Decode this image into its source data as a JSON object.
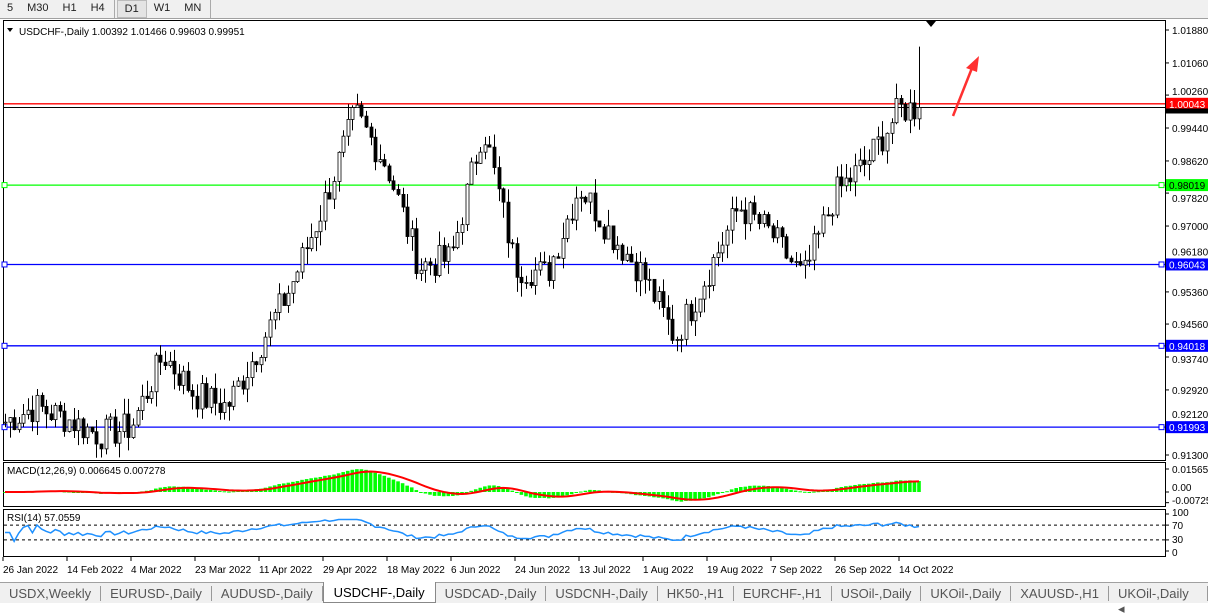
{
  "timeframes": [
    {
      "label": "5"
    },
    {
      "label": "M30"
    },
    {
      "label": "H1"
    },
    {
      "label": "H4"
    },
    {
      "label": "D1",
      "selected": true
    },
    {
      "label": "W1"
    },
    {
      "label": "MN"
    }
  ],
  "chart": {
    "symbol_label": "USDCHF-,Daily",
    "ohlc": "1.00392 1.01466 0.99603 0.99951",
    "macd_label": "MACD(12,26,9) 0.006645 0.007278",
    "rsi_label": "RSI(14) 57.0559",
    "price_ticks": [
      "1.01880",
      "1.01060",
      "1.00260",
      "0.99440",
      "0.98620",
      "0.97820",
      "0.97000",
      "0.96180",
      "0.95360",
      "0.94560",
      "0.93740",
      "0.92920",
      "0.92120",
      "0.91300"
    ],
    "macd_ticks": [
      "0.015654",
      "0.00",
      "-0.007259"
    ],
    "rsi_ticks": [
      "100",
      "70",
      "30",
      "0"
    ],
    "date_ticks": [
      "26 Jan 2022",
      "14 Feb 2022",
      "4 Mar 2022",
      "23 Mar 2022",
      "11 Apr 2022",
      "29 Apr 2022",
      "18 May 2022",
      "6 Jun 2022",
      "24 Jun 2022",
      "13 Jul 2022",
      "1 Aug 2022",
      "19 Aug 2022",
      "7 Sep 2022",
      "26 Sep 2022",
      "14 Oct 2022"
    ],
    "hlines": [
      {
        "price": 1.00043,
        "label": "1.00043",
        "color": "#ff0000"
      },
      {
        "price": 0.98019,
        "label": "0.98019",
        "color": "#00ff00"
      },
      {
        "price": 0.96043,
        "label": "0.96043",
        "color": "#0000ff"
      },
      {
        "price": 0.94018,
        "label": "0.94018",
        "color": "#0000ff"
      },
      {
        "price": 0.91993,
        "label": "0.91993",
        "color": "#0000ff"
      }
    ],
    "colors": {
      "bull": "#000000",
      "bear": "#000000",
      "macd_hist": "#00ff00",
      "macd_signal": "#ff0000",
      "rsi": "#1e90ff",
      "arrow": "#ff3030"
    }
  },
  "chart_data": {
    "type": "candlestick",
    "price_range": [
      0.913,
      1.0188
    ],
    "approx_closes": [
      [
        "26 Jan",
        0.921
      ],
      [
        "4 Feb",
        0.925
      ],
      [
        "14 Feb",
        0.922
      ],
      [
        "23 Feb",
        0.918
      ],
      [
        "4 Mar",
        0.92
      ],
      [
        "14 Mar",
        0.938
      ],
      [
        "23 Mar",
        0.928
      ],
      [
        "1 Apr",
        0.925
      ],
      [
        "11 Apr",
        0.94
      ],
      [
        "20 Apr",
        0.955
      ],
      [
        "29 Apr",
        0.975
      ],
      [
        "10 May",
        0.998
      ],
      [
        "18 May",
        0.985
      ],
      [
        "27 May",
        0.96
      ],
      [
        "6 Jun",
        0.962
      ],
      [
        "15 Jun",
        0.995
      ],
      [
        "24 Jun",
        0.96
      ],
      [
        "4 Jul",
        0.958
      ],
      [
        "13 Jul",
        0.98
      ],
      [
        "22 Jul",
        0.968
      ],
      [
        "1 Aug",
        0.958
      ],
      [
        "10 Aug",
        0.942
      ],
      [
        "19 Aug",
        0.958
      ],
      [
        "30 Aug",
        0.975
      ],
      [
        "7 Sep",
        0.968
      ],
      [
        "16 Sep",
        0.957
      ],
      [
        "26 Sep",
        0.978
      ],
      [
        "5 Oct",
        0.986
      ],
      [
        "14 Oct",
        0.999
      ],
      [
        "19 Oct",
        0.9995
      ]
    ]
  },
  "tabs": [
    {
      "label": "USDX,Weekly"
    },
    {
      "label": "EURUSD-,Daily"
    },
    {
      "label": "AUDUSD-,Daily"
    },
    {
      "label": "USDCHF-,Daily",
      "selected": true
    },
    {
      "label": "USDCAD-,Daily"
    },
    {
      "label": "USDCNH-,Daily"
    },
    {
      "label": "HK50-,H1"
    },
    {
      "label": "EURCHF-,H1"
    },
    {
      "label": "USOil-,Daily"
    },
    {
      "label": "UKOil-,Daily"
    },
    {
      "label": "XAUUSD-,H1"
    },
    {
      "label": "UKOil-,Daily ◂"
    }
  ]
}
